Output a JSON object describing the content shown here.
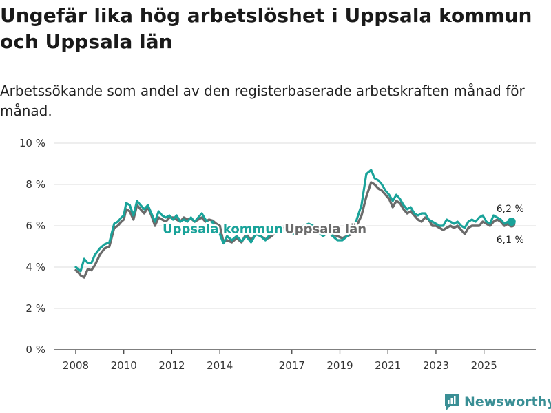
{
  "header": {
    "title": "Ungefär lika hög arbetslöshet i Uppsala kommun och Uppsala län",
    "subtitle": "Arbetssökande som andel av den registerbaserade arbetskraften månad för månad."
  },
  "brand": {
    "name": "Newsworthy",
    "icon": "newsworthy-logo-icon",
    "color": "#3a8f95"
  },
  "chart_data": {
    "type": "line",
    "title": "Ungefär lika hög arbetslöshet i Uppsala kommun och Uppsala län",
    "xlabel": "",
    "ylabel": "",
    "xlim": [
      2008.0,
      2026.3
    ],
    "ylim": [
      0,
      10
    ],
    "y_ticks": [
      0,
      2,
      4,
      6,
      8,
      10
    ],
    "y_tick_labels": [
      "0 %",
      "2 %",
      "4 %",
      "6 %",
      "8 %",
      "10 %"
    ],
    "x_ticks": [
      2008,
      2010,
      2012,
      2014,
      2017,
      2019,
      2021,
      2023,
      2025
    ],
    "x_tick_labels": [
      "2008",
      "2010",
      "2012",
      "2014",
      "2017",
      "2019",
      "2021",
      "2023",
      "2025"
    ],
    "grid": true,
    "series": [
      {
        "name": "Uppsala län",
        "color": "#6b6b6b",
        "end_label": "6,1 %",
        "x": [
          2008.0,
          2008.1,
          2008.2,
          2008.35,
          2008.5,
          2008.65,
          2008.8,
          2009.0,
          2009.2,
          2009.4,
          2009.6,
          2009.75,
          2009.9,
          2010.0,
          2010.1,
          2010.25,
          2010.4,
          2010.55,
          2010.7,
          2010.85,
          2011.0,
          2011.15,
          2011.3,
          2011.45,
          2011.6,
          2011.75,
          2011.9,
          2012.05,
          2012.2,
          2012.35,
          2012.5,
          2012.65,
          2012.8,
          2012.95,
          2013.1,
          2013.25,
          2013.4,
          2013.55,
          2013.7,
          2013.85,
          2014.0,
          2014.15,
          2014.3,
          2014.5,
          2014.7,
          2014.9,
          2015.1,
          2015.3,
          2015.5,
          2015.7,
          2015.9,
          2016.1,
          2016.3,
          2016.5,
          2016.7,
          2016.9,
          2017.1,
          2017.3,
          2017.5,
          2017.7,
          2017.9,
          2018.1,
          2018.3,
          2018.5,
          2018.7,
          2018.9,
          2019.1,
          2019.3,
          2019.5,
          2019.7,
          2019.9,
          2020.1,
          2020.3,
          2020.45,
          2020.6,
          2020.75,
          2020.9,
          2021.05,
          2021.2,
          2021.35,
          2021.5,
          2021.65,
          2021.8,
          2021.95,
          2022.1,
          2022.25,
          2022.4,
          2022.55,
          2022.7,
          2022.85,
          2023.0,
          2023.15,
          2023.3,
          2023.45,
          2023.6,
          2023.75,
          2023.9,
          2024.05,
          2024.2,
          2024.35,
          2024.5,
          2024.65,
          2024.8,
          2024.95,
          2025.1,
          2025.25,
          2025.4,
          2025.55,
          2025.7,
          2025.85,
          2026.0,
          2026.15
        ],
        "y": [
          3.85,
          3.75,
          3.6,
          3.5,
          3.9,
          3.85,
          4.1,
          4.6,
          4.9,
          5.0,
          5.9,
          6.0,
          6.2,
          6.3,
          6.8,
          6.7,
          6.3,
          7.0,
          6.8,
          6.6,
          6.9,
          6.5,
          6.0,
          6.4,
          6.3,
          6.2,
          6.4,
          6.4,
          6.3,
          6.2,
          6.4,
          6.3,
          6.35,
          6.2,
          6.3,
          6.4,
          6.2,
          6.3,
          6.25,
          6.1,
          6.0,
          5.2,
          5.3,
          5.2,
          5.4,
          5.2,
          5.6,
          5.3,
          5.6,
          5.5,
          5.35,
          5.45,
          5.65,
          5.8,
          5.9,
          5.85,
          5.7,
          5.8,
          5.9,
          6.0,
          6.0,
          5.8,
          5.5,
          5.7,
          5.6,
          5.5,
          5.4,
          5.5,
          5.6,
          6.0,
          6.5,
          7.4,
          8.1,
          8.0,
          7.8,
          7.7,
          7.5,
          7.3,
          6.9,
          7.2,
          7.1,
          6.8,
          6.6,
          6.7,
          6.5,
          6.3,
          6.2,
          6.4,
          6.3,
          6.0,
          6.0,
          5.9,
          5.8,
          5.9,
          6.0,
          5.9,
          6.0,
          5.8,
          5.6,
          5.9,
          6.0,
          6.0,
          6.0,
          6.2,
          6.1,
          6.0,
          6.2,
          6.3,
          6.2,
          6.0,
          6.1,
          6.1
        ]
      },
      {
        "name": "Uppsala kommun",
        "color": "#1aa39a",
        "end_label": "6,2 %",
        "x": [
          2008.0,
          2008.1,
          2008.2,
          2008.35,
          2008.5,
          2008.65,
          2008.8,
          2009.0,
          2009.2,
          2009.4,
          2009.6,
          2009.75,
          2009.9,
          2010.0,
          2010.1,
          2010.25,
          2010.4,
          2010.55,
          2010.7,
          2010.85,
          2011.0,
          2011.15,
          2011.3,
          2011.45,
          2011.6,
          2011.75,
          2011.9,
          2012.05,
          2012.2,
          2012.35,
          2012.5,
          2012.65,
          2012.8,
          2012.95,
          2013.1,
          2013.25,
          2013.4,
          2013.55,
          2013.7,
          2013.85,
          2014.0,
          2014.15,
          2014.3,
          2014.5,
          2014.7,
          2014.9,
          2015.1,
          2015.3,
          2015.5,
          2015.7,
          2015.9,
          2016.1,
          2016.3,
          2016.5,
          2016.7,
          2016.9,
          2017.1,
          2017.3,
          2017.5,
          2017.7,
          2017.9,
          2018.1,
          2018.3,
          2018.5,
          2018.7,
          2018.9,
          2019.1,
          2019.3,
          2019.5,
          2019.7,
          2019.9,
          2020.1,
          2020.3,
          2020.45,
          2020.6,
          2020.75,
          2020.9,
          2021.05,
          2021.2,
          2021.35,
          2021.5,
          2021.65,
          2021.8,
          2021.95,
          2022.1,
          2022.25,
          2022.4,
          2022.55,
          2022.7,
          2022.85,
          2023.0,
          2023.15,
          2023.3,
          2023.45,
          2023.6,
          2023.75,
          2023.9,
          2024.05,
          2024.2,
          2024.35,
          2024.5,
          2024.65,
          2024.8,
          2024.95,
          2025.1,
          2025.25,
          2025.4,
          2025.55,
          2025.7,
          2025.85,
          2026.0,
          2026.15
        ],
        "y": [
          4.0,
          3.9,
          3.8,
          4.4,
          4.2,
          4.2,
          4.6,
          4.9,
          5.1,
          5.2,
          6.1,
          6.2,
          6.4,
          6.5,
          7.1,
          7.0,
          6.5,
          7.2,
          7.0,
          6.8,
          7.0,
          6.6,
          6.2,
          6.7,
          6.5,
          6.4,
          6.5,
          6.3,
          6.5,
          6.2,
          6.3,
          6.2,
          6.4,
          6.2,
          6.4,
          6.6,
          6.3,
          6.1,
          6.2,
          5.8,
          5.6,
          5.15,
          5.5,
          5.3,
          5.5,
          5.25,
          5.5,
          5.2,
          5.6,
          5.5,
          5.3,
          5.6,
          5.7,
          5.8,
          5.75,
          5.7,
          5.6,
          5.8,
          6.0,
          6.1,
          6.0,
          5.7,
          5.5,
          5.7,
          5.5,
          5.3,
          5.3,
          5.5,
          5.8,
          6.3,
          7.0,
          8.5,
          8.7,
          8.3,
          8.2,
          8.0,
          7.7,
          7.5,
          7.2,
          7.5,
          7.3,
          7.0,
          6.8,
          6.9,
          6.6,
          6.5,
          6.6,
          6.6,
          6.3,
          6.2,
          6.1,
          6.0,
          6.0,
          6.3,
          6.2,
          6.1,
          6.2,
          6.0,
          5.9,
          6.2,
          6.3,
          6.2,
          6.4,
          6.5,
          6.2,
          6.1,
          6.5,
          6.4,
          6.3,
          6.1,
          6.2,
          6.2
        ]
      }
    ],
    "annotations": [
      {
        "text": "Uppsala kommun",
        "series": "Uppsala kommun",
        "x": 2011.5,
        "y": 5.88
      },
      {
        "text": "Uppsala län",
        "series": "Uppsala län",
        "x": 2018.4,
        "y": 5.88
      }
    ]
  }
}
